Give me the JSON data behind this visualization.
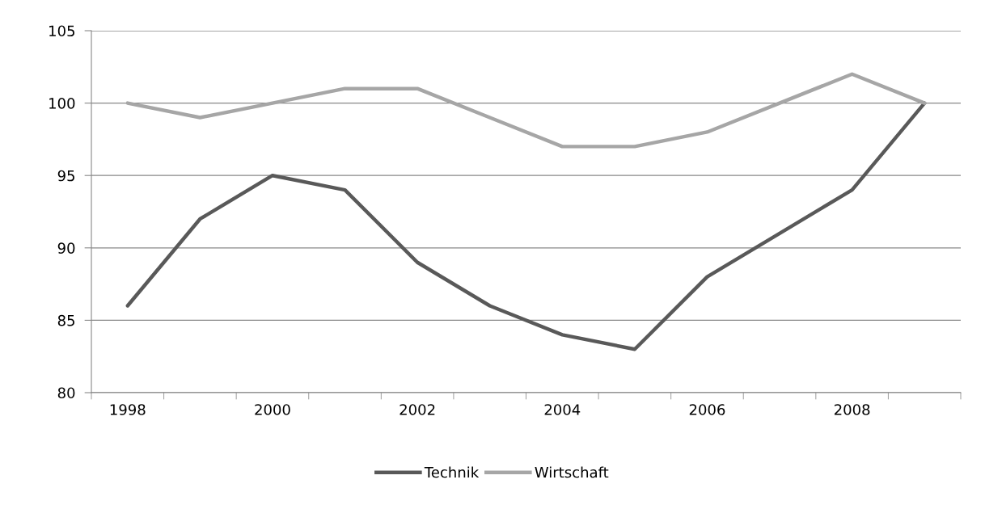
{
  "chart_data": {
    "type": "line",
    "categories": [
      "1998",
      null,
      "2000",
      null,
      "2002",
      null,
      "2004",
      null,
      "2006",
      null,
      "2008",
      null
    ],
    "series": [
      {
        "name": "Technik",
        "color": "#595959",
        "values": [
          86,
          92,
          95,
          94,
          89,
          86,
          84,
          83,
          88,
          91,
          94,
          100
        ]
      },
      {
        "name": "Wirtschaft",
        "color": "#a6a6a6",
        "values": [
          100,
          99,
          100,
          101,
          101,
          99,
          97,
          97,
          98,
          100,
          102,
          100
        ]
      }
    ],
    "ylim": [
      80,
      105
    ],
    "yticks": [
      80,
      85,
      90,
      95,
      100,
      105
    ],
    "grid": "y",
    "legend": "bottom",
    "marker": "none",
    "line_style": "solid"
  }
}
